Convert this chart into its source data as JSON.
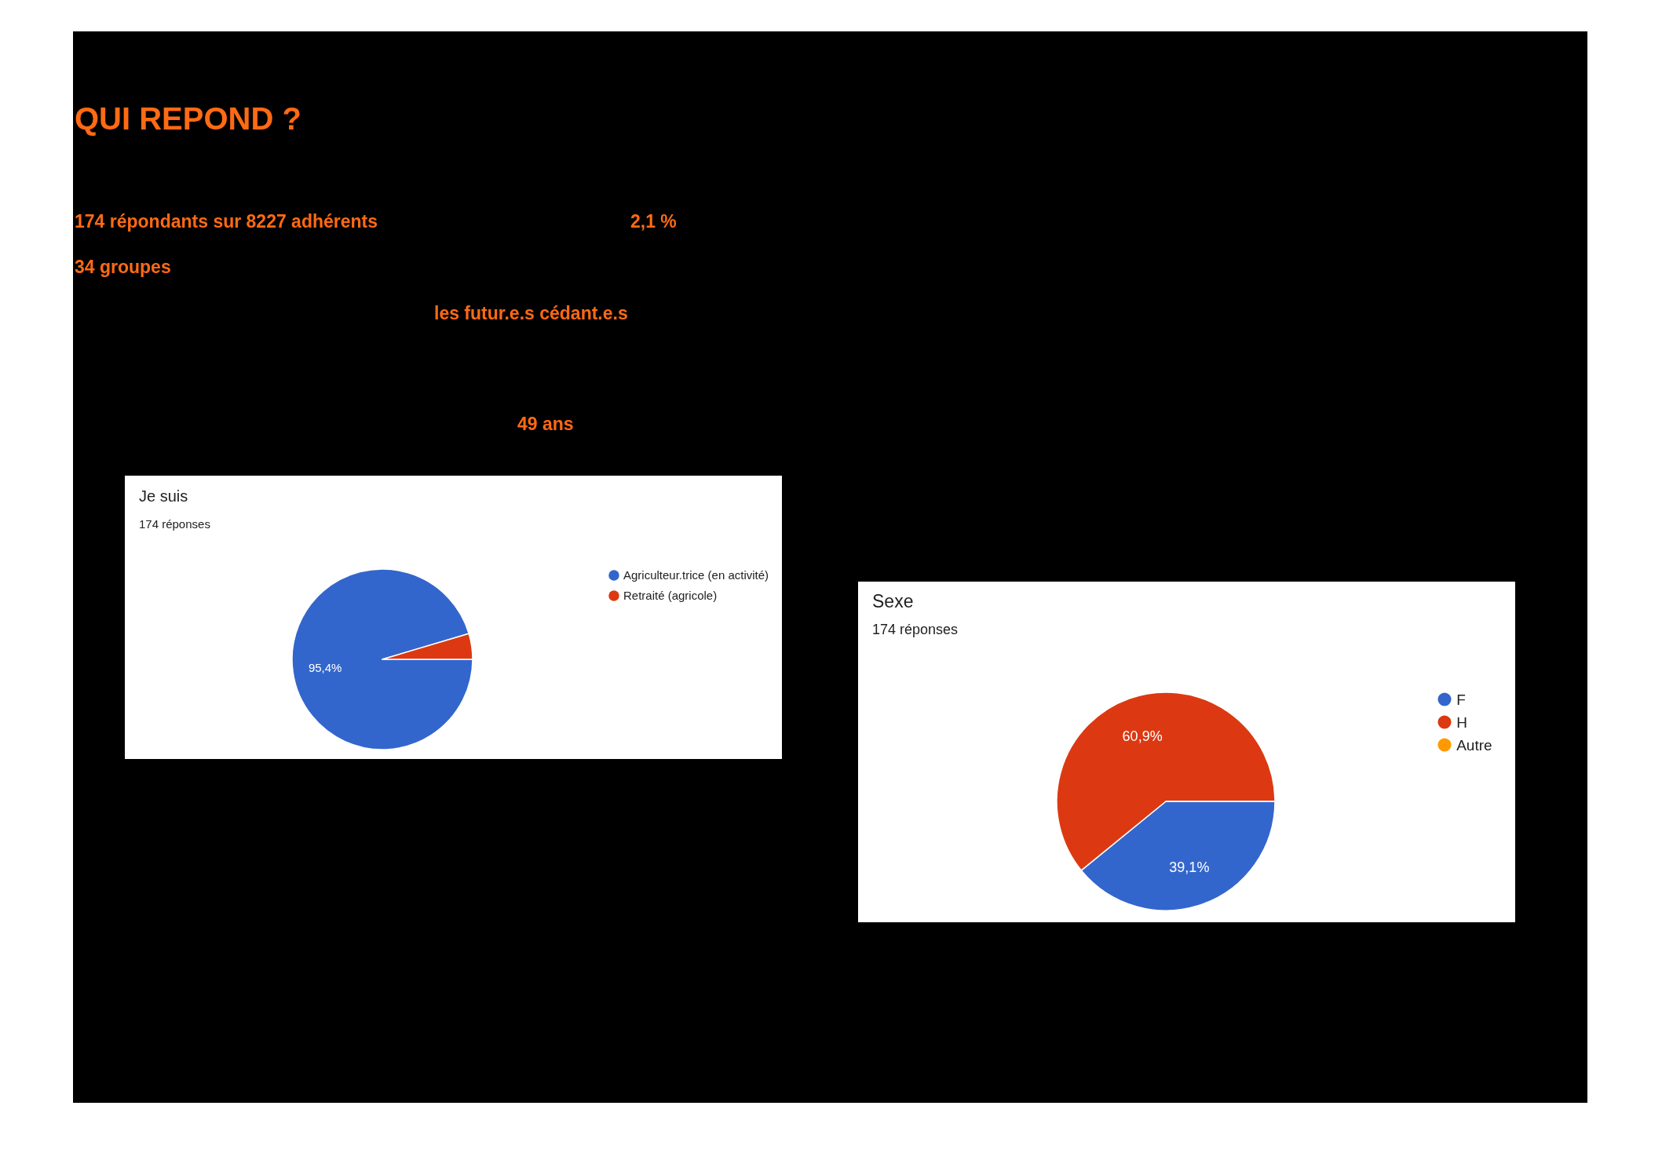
{
  "chart_data": [
    {
      "type": "other",
      "title": "QUI REPOND ?",
      "annotations": [
        "174 répondants sur 8227 adhérents",
        "2,1 %",
        "34 groupes",
        "les futur.e.s cédant.e.s",
        "49 ans"
      ]
    },
    {
      "type": "pie",
      "title": "Je suis",
      "subtitle": "174 réponses",
      "categories": [
        "Agriculteur.trice (en activité)",
        "Retraité (agricole)"
      ],
      "values": [
        95.4,
        4.6
      ],
      "colors": [
        "#3366cc",
        "#dc3912"
      ],
      "value_labels": [
        "95,4%",
        null
      ],
      "legend": "right"
    },
    {
      "type": "pie",
      "title": "Sexe",
      "subtitle": "174 réponses",
      "categories": [
        "F",
        "H",
        "Autre"
      ],
      "values": [
        39.1,
        60.9,
        0
      ],
      "colors": [
        "#3366cc",
        "#dc3912",
        "#ff9900"
      ],
      "value_labels": [
        "39,1%",
        "60,9%",
        null
      ],
      "legend": "right"
    }
  ]
}
